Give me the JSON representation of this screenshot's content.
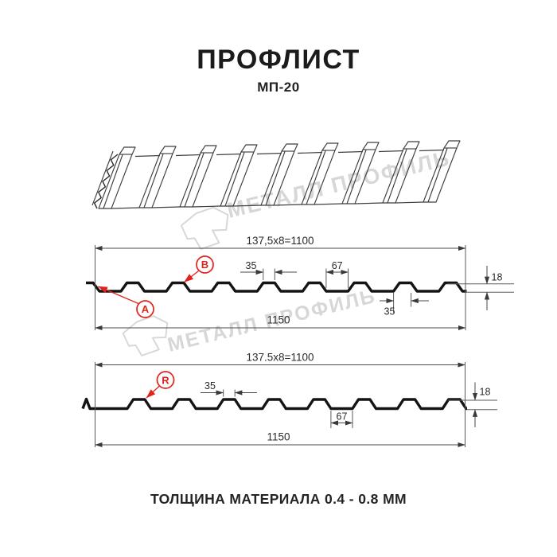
{
  "page": {
    "title": "ПРОФЛИСТ",
    "subtitle": "МП-20",
    "footer": "ТОЛЩИНА МАТЕРИАЛА 0.4 - 0.8 ММ"
  },
  "watermark": {
    "text": "МЕТАЛЛ ПРОФИЛЬ",
    "logo_icon": "metal-profil-logo"
  },
  "colors": {
    "accent_red": "#e2231c",
    "profile_line": "#141414",
    "dimension_line": "#4a4a4a",
    "watermark_gray": "#d7d7d7"
  },
  "section_a": {
    "point_labels": [
      {
        "id": "A"
      },
      {
        "id": "B"
      }
    ],
    "dims": {
      "pitch": "137,5x8=1100",
      "rib_top": "35",
      "trough": "67",
      "height": "18",
      "rib_base": "35",
      "overall": "1150"
    }
  },
  "section_r": {
    "point_labels": [
      {
        "id": "R"
      }
    ],
    "dims": {
      "pitch": "137.5x8=1100",
      "rib_top": "35",
      "trough": "67",
      "height": "18",
      "overall": "1150"
    }
  }
}
